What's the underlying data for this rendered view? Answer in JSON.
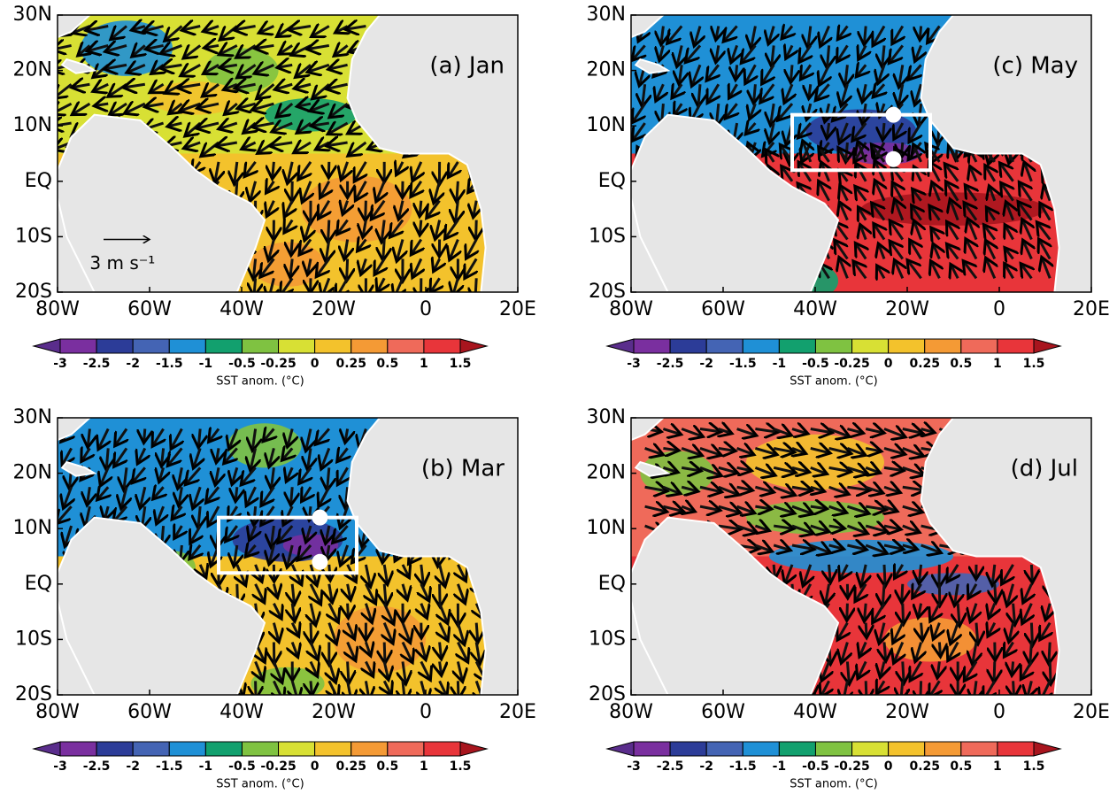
{
  "panels": [
    {
      "label": "(a)  Jan",
      "scale_label": "3  m  s⁻¹"
    },
    {
      "label": "(c)  May"
    },
    {
      "label": "(b)  Mar"
    },
    {
      "label": "(d)  Jul"
    }
  ],
  "lon_ticks": [
    "80W",
    "60W",
    "40W",
    "20W",
    "0",
    "20E"
  ],
  "lat_ticks": [
    "30N",
    "20N",
    "10N",
    "EQ",
    "10S",
    "20S"
  ],
  "colorbar": {
    "ticks": [
      -3,
      -2.5,
      -2,
      -1.5,
      -1,
      -0.5,
      -0.25,
      0,
      0.25,
      0.5,
      1,
      1.5
    ],
    "colors": [
      "#5a2d8c",
      "#7a2f9f",
      "#2c3c98",
      "#4464b4",
      "#1f90d6",
      "#12a06e",
      "#7fc241",
      "#d8e034",
      "#f3c22c",
      "#f49a35",
      "#ef6a5a",
      "#e8353a",
      "#a8151e"
    ],
    "label": "SST  anom.  (°C)"
  }
}
